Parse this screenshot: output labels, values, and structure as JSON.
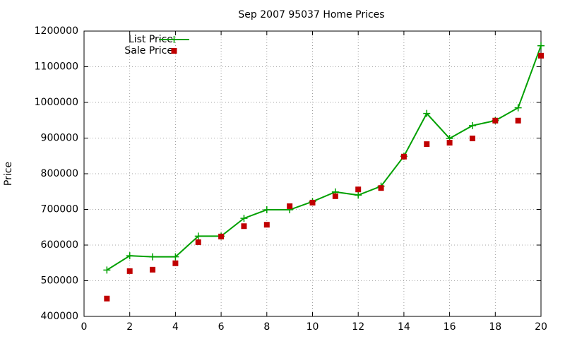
{
  "chart_data": {
    "type": "line",
    "title": "Sep 2007 95037 Home Prices",
    "y_label": "Price",
    "x": [
      1,
      2,
      3,
      4,
      5,
      6,
      7,
      8,
      9,
      10,
      11,
      12,
      13,
      14,
      15,
      16,
      17,
      18,
      19,
      20
    ],
    "series": [
      {
        "name": "List Price",
        "color": "#00a000",
        "line": true,
        "marker": "plus",
        "values": [
          530000,
          570000,
          567000,
          567000,
          625000,
          625000,
          675000,
          699000,
          699000,
          722000,
          749000,
          740000,
          765000,
          849000,
          969000,
          899000,
          935000,
          949000,
          985000,
          1159000
        ]
      },
      {
        "name": "Sale Price",
        "color": "#c00000",
        "line": false,
        "marker": "square",
        "values": [
          450000,
          527000,
          531000,
          549000,
          608000,
          624000,
          653000,
          657000,
          709000,
          719000,
          737000,
          756000,
          760000,
          848000,
          883000,
          887000,
          899000,
          949000,
          949000,
          1131000
        ]
      }
    ],
    "xlim": [
      0,
      20
    ],
    "xticks": [
      0,
      2,
      4,
      6,
      8,
      10,
      12,
      14,
      16,
      18,
      20
    ],
    "ylim": [
      400000,
      1200000
    ],
    "yticks": [
      400000,
      500000,
      600000,
      700000,
      800000,
      900000,
      1000000,
      1100000,
      1200000
    ],
    "grid": true,
    "legend": "top-left"
  }
}
